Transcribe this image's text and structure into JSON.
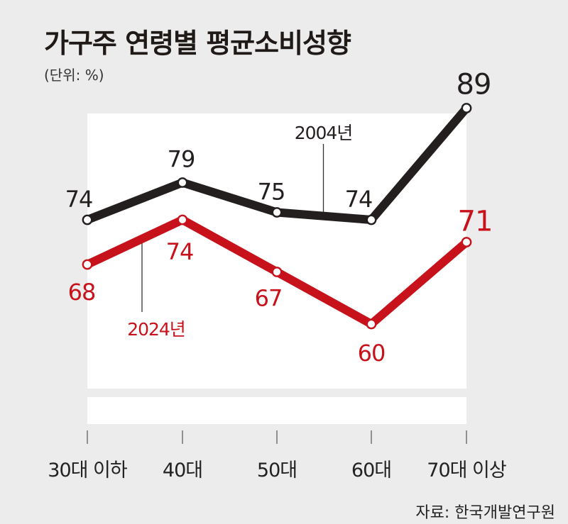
{
  "header": {
    "title": "가구주 연령별 평균소비성향",
    "unit": "(단위: %)"
  },
  "footer": {
    "source": "자료: 한국개발연구원"
  },
  "colors": {
    "series_2004": "#231f1e",
    "series_2024": "#c8121b",
    "background": "#ececec",
    "plot_area": "#ffffff"
  },
  "chart_data": {
    "type": "line",
    "categories": [
      "30대 이하",
      "40대",
      "50대",
      "60대",
      "70대 이상"
    ],
    "series": [
      {
        "name": "2004년",
        "values": [
          74,
          79,
          75,
          74,
          89
        ]
      },
      {
        "name": "2024년",
        "values": [
          68,
          74,
          67,
          60,
          71
        ]
      }
    ],
    "title": "가구주 연령별 평균소비성향",
    "xlabel": "",
    "ylabel": "",
    "unit": "(단위: %)",
    "grid": false,
    "legend": "inline labels"
  }
}
